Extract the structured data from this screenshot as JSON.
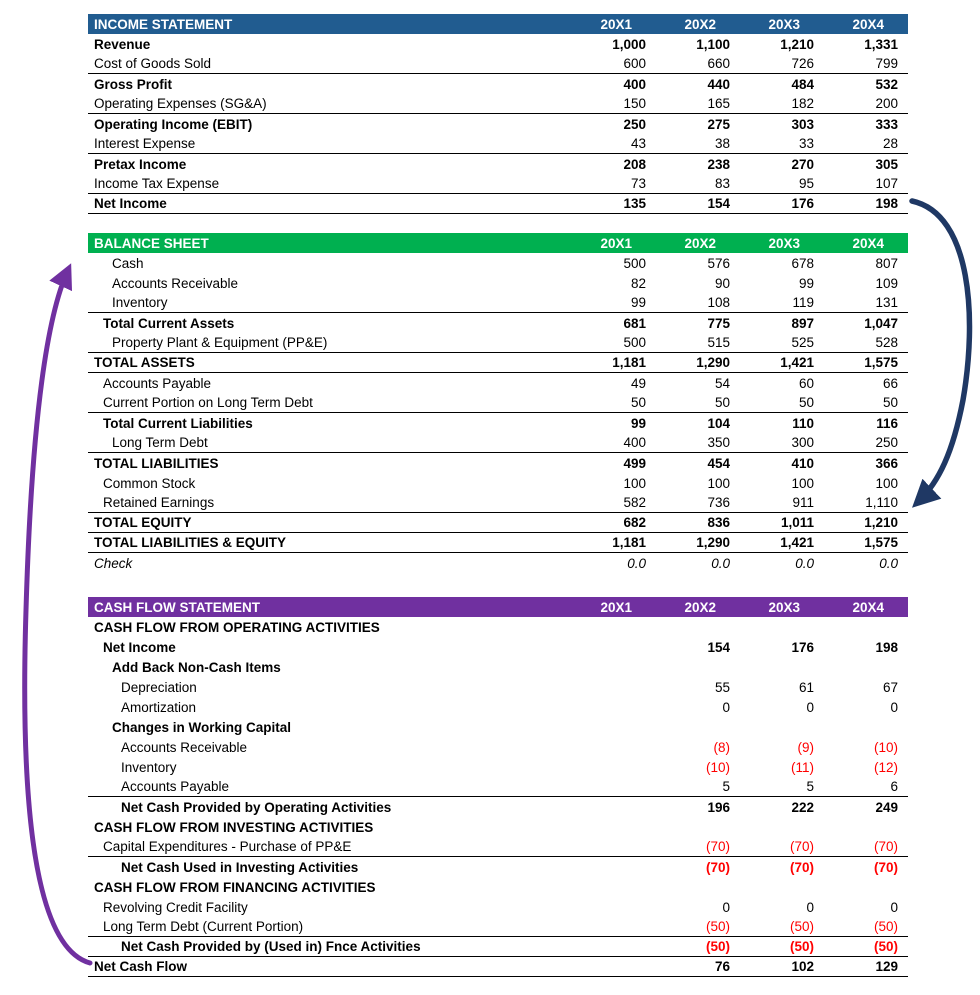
{
  "columns": [
    "20X1",
    "20X2",
    "20X3",
    "20X4"
  ],
  "colors": {
    "negative": "#FF0000",
    "text": "#000000",
    "row_border": "#000000",
    "background": "#FFFFFF"
  },
  "sections": [
    {
      "id": "income-statement",
      "title": "INCOME STATEMENT",
      "header_color": "#215C90",
      "rows": [
        {
          "label": "Revenue",
          "bold": true,
          "values": [
            "1,000",
            "1,100",
            "1,210",
            "1,331"
          ]
        },
        {
          "label": "Cost of Goods Sold",
          "values": [
            "600",
            "660",
            "726",
            "799"
          ],
          "border": true
        },
        {
          "label": "Gross Profit",
          "bold": true,
          "values": [
            "400",
            "440",
            "484",
            "532"
          ]
        },
        {
          "label": "Operating Expenses (SG&A)",
          "values": [
            "150",
            "165",
            "182",
            "200"
          ],
          "border": true
        },
        {
          "label": "Operating Income (EBIT)",
          "bold": true,
          "values": [
            "250",
            "275",
            "303",
            "333"
          ]
        },
        {
          "label": "Interest Expense",
          "values": [
            "43",
            "38",
            "33",
            "28"
          ],
          "border": true
        },
        {
          "label": "Pretax Income",
          "bold": true,
          "values": [
            "208",
            "238",
            "270",
            "305"
          ]
        },
        {
          "label": "Income Tax Expense",
          "values": [
            "73",
            "83",
            "95",
            "107"
          ],
          "border": true
        },
        {
          "label": "Net Income",
          "bold": true,
          "values": [
            "135",
            "154",
            "176",
            "198"
          ],
          "border": true
        }
      ]
    },
    {
      "id": "balance-sheet",
      "title": "BALANCE SHEET",
      "header_color": "#00B050",
      "rows": [
        {
          "label": "Cash",
          "indent": 2,
          "values": [
            "500",
            "576",
            "678",
            "807"
          ]
        },
        {
          "label": "Accounts Receivable",
          "indent": 2,
          "values": [
            "82",
            "90",
            "99",
            "109"
          ]
        },
        {
          "label": "Inventory",
          "indent": 2,
          "values": [
            "99",
            "108",
            "119",
            "131"
          ],
          "border": true
        },
        {
          "label": "Total Current Assets",
          "bold": true,
          "indent": 1,
          "values": [
            "681",
            "775",
            "897",
            "1,047"
          ]
        },
        {
          "label": "Property Plant & Equipment (PP&E)",
          "indent": 2,
          "values": [
            "500",
            "515",
            "525",
            "528"
          ],
          "border": true
        },
        {
          "label": "TOTAL ASSETS",
          "bold": true,
          "indent": 0,
          "values": [
            "1,181",
            "1,290",
            "1,421",
            "1,575"
          ],
          "border": true
        },
        {
          "label": "Accounts Payable",
          "indent": 1,
          "values": [
            "49",
            "54",
            "60",
            "66"
          ]
        },
        {
          "label": "Current Portion on Long Term Debt",
          "indent": 1,
          "values": [
            "50",
            "50",
            "50",
            "50"
          ],
          "border": true
        },
        {
          "label": "Total Current Liabilities",
          "bold": true,
          "indent": 1,
          "values": [
            "99",
            "104",
            "110",
            "116"
          ]
        },
        {
          "label": "Long Term Debt",
          "indent": 2,
          "values": [
            "400",
            "350",
            "300",
            "250"
          ],
          "border": true
        },
        {
          "label": "TOTAL LIABILITIES",
          "bold": true,
          "indent": 0,
          "values": [
            "499",
            "454",
            "410",
            "366"
          ]
        },
        {
          "label": "Common Stock",
          "indent": 1,
          "values": [
            "100",
            "100",
            "100",
            "100"
          ]
        },
        {
          "label": "Retained Earnings",
          "indent": 1,
          "values": [
            "582",
            "736",
            "911",
            "1,110"
          ],
          "border": true
        },
        {
          "label": "TOTAL EQUITY",
          "bold": true,
          "indent": 0,
          "values": [
            "682",
            "836",
            "1,011",
            "1,210"
          ],
          "border": true
        },
        {
          "label": "TOTAL LIABILITIES & EQUITY",
          "bold": true,
          "indent": 0,
          "values": [
            "1,181",
            "1,290",
            "1,421",
            "1,575"
          ],
          "border": true
        },
        {
          "label": "Check",
          "italic": true,
          "indent": 0,
          "values": [
            "0.0",
            "0.0",
            "0.0",
            "0.0"
          ]
        }
      ]
    },
    {
      "id": "cash-flow-statement",
      "title": "CASH FLOW STATEMENT",
      "header_color": "#7030A0",
      "rows": [
        {
          "label": "CASH FLOW FROM OPERATING ACTIVITIES",
          "bold": true,
          "indent": 0,
          "values": [
            "",
            "",
            "",
            ""
          ]
        },
        {
          "label": "Net Income",
          "bold": true,
          "indent": 1,
          "values": [
            "",
            "154",
            "176",
            "198"
          ]
        },
        {
          "label": "Add Back Non-Cash Items",
          "bold": true,
          "indent": 2,
          "values": [
            "",
            "",
            "",
            ""
          ]
        },
        {
          "label": "Depreciation",
          "indent": 3,
          "values": [
            "",
            "55",
            "61",
            "67"
          ]
        },
        {
          "label": "Amortization",
          "indent": 3,
          "values": [
            "",
            "0",
            "0",
            "0"
          ]
        },
        {
          "label": "Changes in Working Capital",
          "bold": true,
          "indent": 2,
          "values": [
            "",
            "",
            "",
            ""
          ]
        },
        {
          "label": "Accounts Receivable",
          "indent": 3,
          "values": [
            "",
            "(8)",
            "(9)",
            "(10)"
          ]
        },
        {
          "label": "Inventory",
          "indent": 3,
          "values": [
            "",
            "(10)",
            "(11)",
            "(12)"
          ]
        },
        {
          "label": "Accounts Payable",
          "indent": 3,
          "values": [
            "",
            "5",
            "5",
            "6"
          ],
          "border": true
        },
        {
          "label": "Net Cash Provided by Operating Activities",
          "bold": true,
          "indent": 3,
          "values": [
            "",
            "196",
            "222",
            "249"
          ]
        },
        {
          "label": "CASH FLOW FROM INVESTING ACTIVITIES",
          "bold": true,
          "indent": 0,
          "values": [
            "",
            "",
            "",
            ""
          ]
        },
        {
          "label": "Capital Expenditures - Purchase of PP&E",
          "indent": 1,
          "values": [
            "",
            "(70)",
            "(70)",
            "(70)"
          ],
          "border": true
        },
        {
          "label": "Net Cash Used in Investing Activities",
          "bold": true,
          "indent": 3,
          "values": [
            "",
            "(70)",
            "(70)",
            "(70)"
          ]
        },
        {
          "label": "CASH FLOW FROM FINANCING ACTIVITIES",
          "bold": true,
          "indent": 0,
          "values": [
            "",
            "",
            "",
            ""
          ]
        },
        {
          "label": "Revolving Credit Facility",
          "indent": 1,
          "values": [
            "",
            "0",
            "0",
            "0"
          ]
        },
        {
          "label": "Long Term Debt (Current Portion)",
          "indent": 1,
          "values": [
            "",
            "(50)",
            "(50)",
            "(50)"
          ],
          "border": true
        },
        {
          "label": "Net Cash Provided by (Used in) Fnce Activities",
          "bold": true,
          "indent": 3,
          "values": [
            "",
            "(50)",
            "(50)",
            "(50)"
          ],
          "border": true
        },
        {
          "label": "Net Cash Flow",
          "bold": true,
          "indent": 0,
          "values": [
            "",
            "76",
            "102",
            "129"
          ],
          "border": true
        }
      ]
    }
  ],
  "arrows": [
    {
      "name": "net-income-to-retained-earnings",
      "color": "#1F3864"
    },
    {
      "name": "net-cash-flow-to-cash",
      "color": "#7030A0"
    }
  ]
}
